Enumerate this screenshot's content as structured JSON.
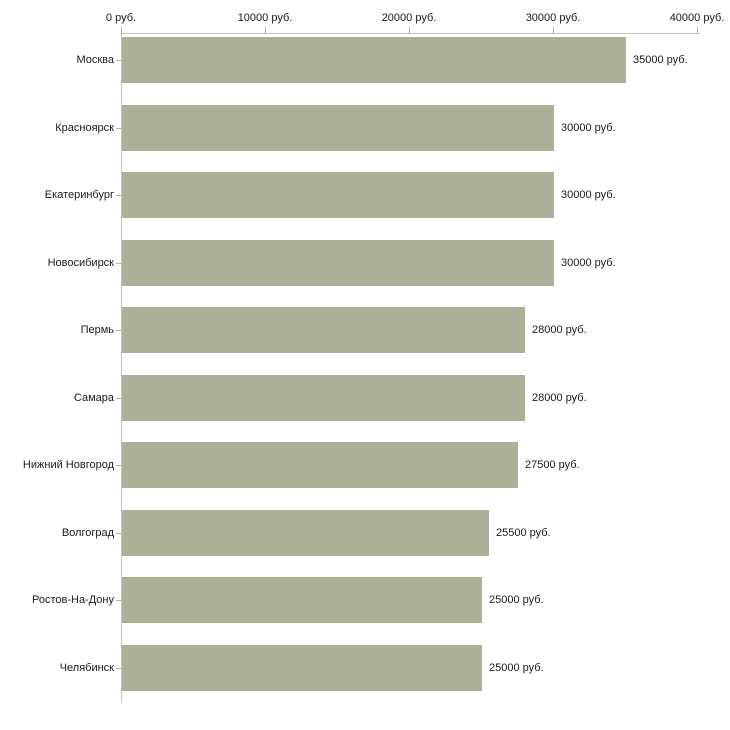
{
  "chart_data": {
    "type": "bar",
    "orientation": "horizontal",
    "title": "",
    "xlabel": "",
    "ylabel": "",
    "categories": [
      "Москва",
      "Красноярск",
      "Екатеринбург",
      "Новосибирск",
      "Пермь",
      "Самара",
      "Нижний Новгород",
      "Волгоград",
      "Ростов-На-Дону",
      "Челябинск"
    ],
    "values": [
      35000,
      30000,
      30000,
      30000,
      28000,
      28000,
      27500,
      25500,
      25000,
      25000
    ],
    "value_labels": [
      "35000 руб.",
      "30000 руб.",
      "30000 руб.",
      "30000 руб.",
      "28000 руб.",
      "28000 руб.",
      "27500 руб.",
      "25500 руб.",
      "25000 руб.",
      "25000 руб."
    ],
    "x_axis": {
      "position": "top",
      "range": [
        0,
        40000
      ],
      "ticks": [
        0,
        10000,
        20000,
        30000,
        40000
      ],
      "tick_labels": [
        "0 руб.",
        "10000 руб.",
        "20000 руб.",
        "30000 руб.",
        "40000 руб."
      ]
    },
    "legend": null,
    "grid": false,
    "colors": {
      "bar": "#abb096",
      "axis_line": "#c6c6c0",
      "tick": "#b5b295",
      "text": "#1a1a1a",
      "background": "#ffffff"
    }
  }
}
